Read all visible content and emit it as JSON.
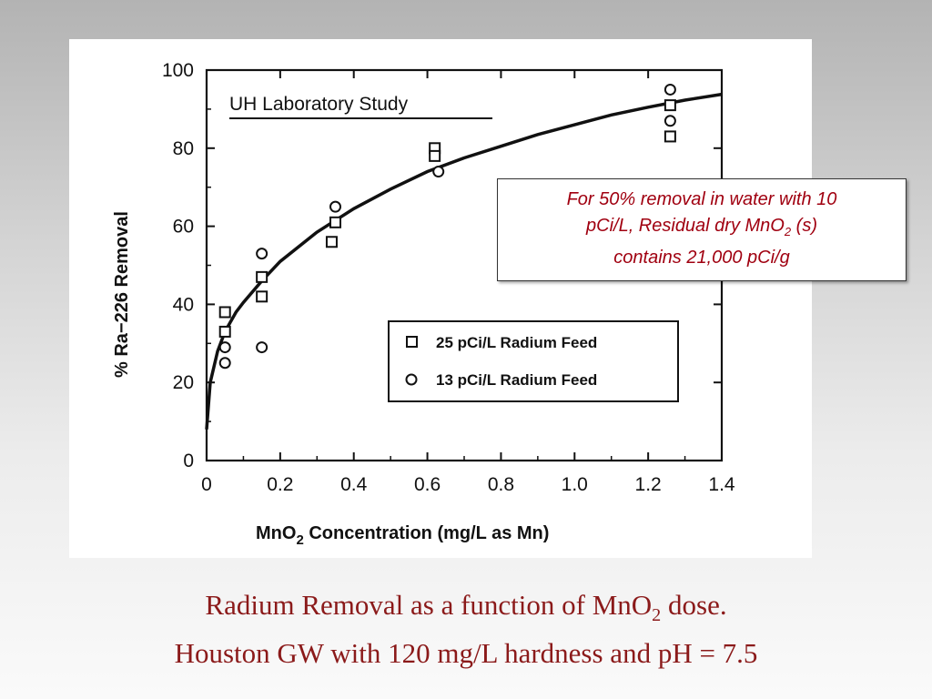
{
  "chart_data": {
    "type": "scatter",
    "xlabel": "MnO",
    "xlabel_sub": "2",
    "xlabel_rest": " Concentration (mg/L as Mn)",
    "ylabel": "% Ra−226 Removal",
    "xlim": [
      0,
      1.4
    ],
    "ylim": [
      0,
      100
    ],
    "x_ticks": [
      "0",
      "0.2",
      "0.4",
      "0.6",
      "0.8",
      "1.0",
      "1.2",
      "1.4"
    ],
    "y_ticks": [
      "0",
      "20",
      "40",
      "60",
      "80",
      "100"
    ],
    "annotation": "UH Laboratory Study",
    "legend_position": "lower-right",
    "series": [
      {
        "name": "25 pCi/L Radium Feed",
        "marker": "square",
        "points": [
          [
            0.05,
            38
          ],
          [
            0.05,
            33
          ],
          [
            0.15,
            47
          ],
          [
            0.15,
            42
          ],
          [
            0.34,
            56
          ],
          [
            0.35,
            61
          ],
          [
            0.62,
            80
          ],
          [
            0.62,
            78
          ],
          [
            1.26,
            91
          ],
          [
            1.26,
            83
          ]
        ]
      },
      {
        "name": "13 pCi/L Radium Feed",
        "marker": "circle",
        "points": [
          [
            0.05,
            29
          ],
          [
            0.05,
            25
          ],
          [
            0.15,
            53
          ],
          [
            0.15,
            29
          ],
          [
            0.35,
            65
          ],
          [
            0.63,
            74
          ],
          [
            1.26,
            95
          ],
          [
            1.26,
            87
          ]
        ]
      }
    ],
    "fit_curve": [
      [
        0,
        8
      ],
      [
        0.01,
        20
      ],
      [
        0.03,
        28
      ],
      [
        0.05,
        33
      ],
      [
        0.08,
        38
      ],
      [
        0.1,
        40.5
      ],
      [
        0.15,
        46
      ],
      [
        0.2,
        51
      ],
      [
        0.3,
        58.5
      ],
      [
        0.4,
        64.5
      ],
      [
        0.5,
        69.5
      ],
      [
        0.6,
        74
      ],
      [
        0.7,
        77.5
      ],
      [
        0.8,
        80.5
      ],
      [
        0.9,
        83.5
      ],
      [
        1.0,
        86
      ],
      [
        1.1,
        88.5
      ],
      [
        1.2,
        90.5
      ],
      [
        1.3,
        92.3
      ],
      [
        1.4,
        93.8
      ]
    ]
  },
  "note": {
    "line1": "For 50% removal in water with 10",
    "line2_a": "pCi/L, Residual dry MnO",
    "line2_sub": "2",
    "line2_b": " (s)",
    "line3": "contains 21,000 pCi/g"
  },
  "caption": {
    "line1_a": "Radium Removal as a function of MnO",
    "line1_sub": "2",
    "line1_b": " dose.",
    "line2": "Houston GW with 120 mg/L hardness and pH = 7.5"
  }
}
